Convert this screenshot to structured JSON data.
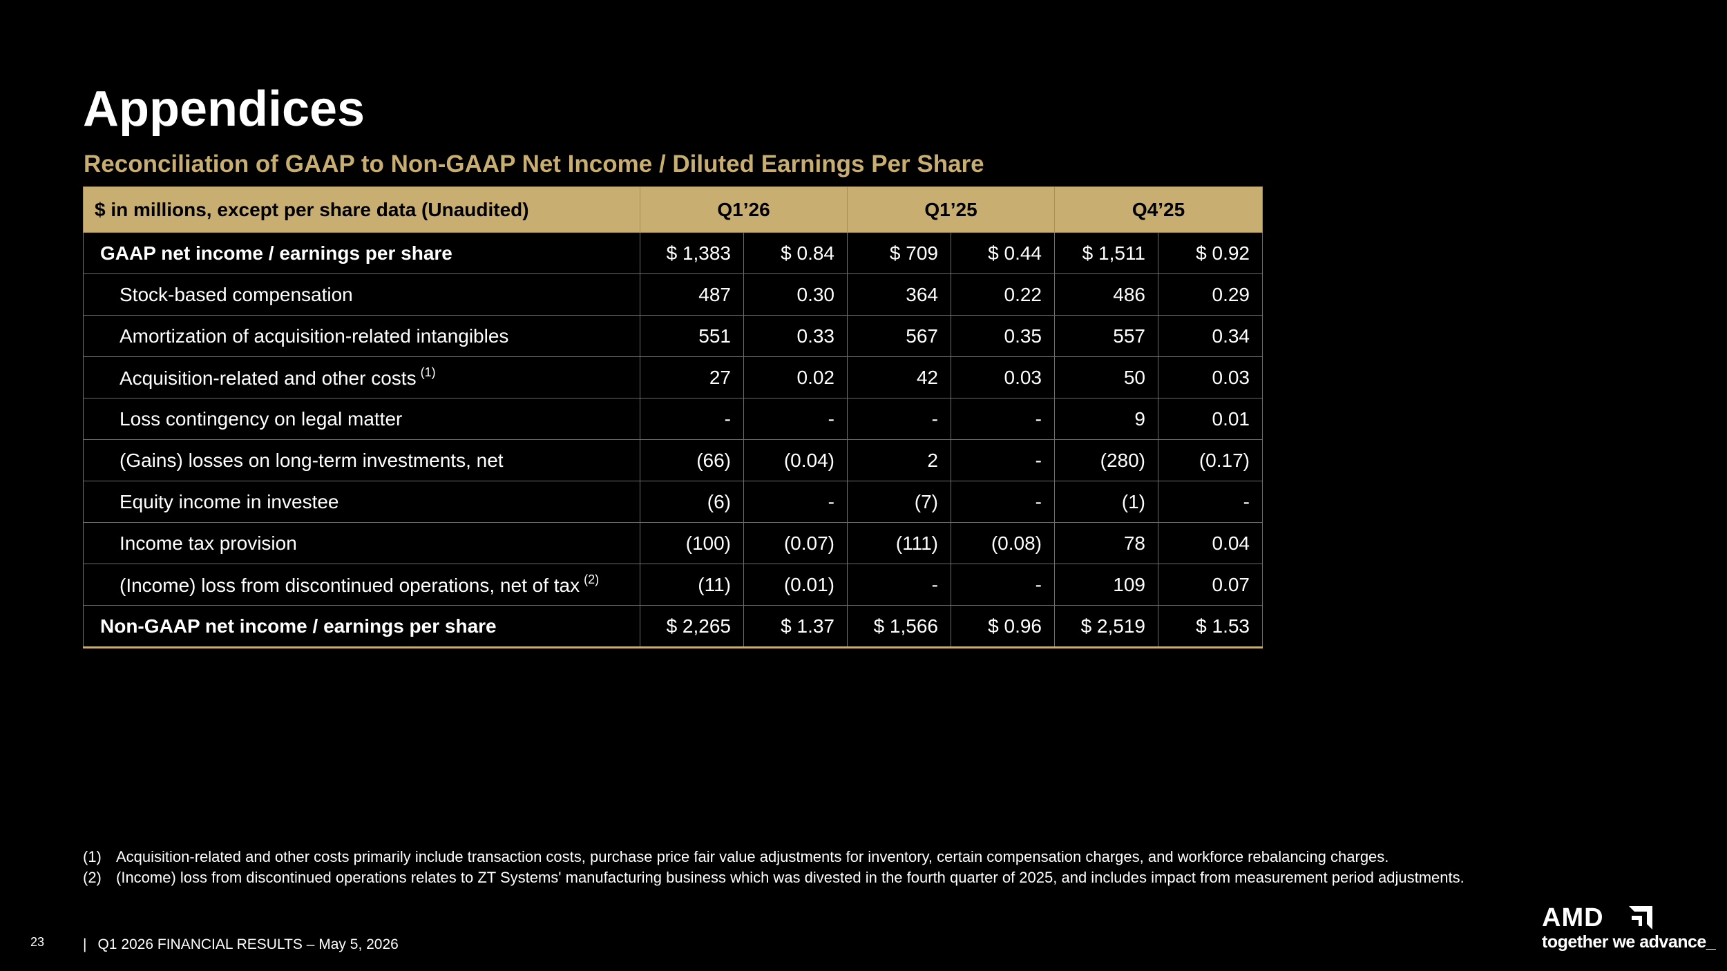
{
  "slide": {
    "title": "Appendices",
    "subtitle": "Reconciliation of GAAP to Non-GAAP Net Income / Diluted Earnings Per Share",
    "page_number": "23",
    "footer_separator": "|",
    "footer_text": "Q1 2026 FINANCIAL RESULTS – May 5, 2026"
  },
  "table": {
    "header_label": "$ in millions, except per share data (Unaudited)",
    "periods": [
      "Q1’26",
      "Q1’25",
      "Q4’25"
    ],
    "rows": [
      {
        "label": "GAAP net income / earnings per share",
        "footnote": "",
        "bold": true,
        "values": [
          "$ 1,383",
          "$ 0.84",
          "$ 709",
          "$ 0.44",
          "$ 1,511",
          "$ 0.92"
        ]
      },
      {
        "label": "Stock-based compensation",
        "footnote": "",
        "bold": false,
        "values": [
          "487",
          "0.30",
          "364",
          "0.22",
          "486",
          "0.29"
        ]
      },
      {
        "label": "Amortization of acquisition-related intangibles",
        "footnote": "",
        "bold": false,
        "values": [
          "551",
          "0.33",
          "567",
          "0.35",
          "557",
          "0.34"
        ]
      },
      {
        "label": "Acquisition-related and other costs",
        "footnote": "(1)",
        "bold": false,
        "values": [
          "27",
          "0.02",
          "42",
          "0.03",
          "50",
          "0.03"
        ]
      },
      {
        "label": "Loss contingency on legal matter",
        "footnote": "",
        "bold": false,
        "values": [
          "-",
          "-",
          "-",
          "-",
          "9",
          "0.01"
        ]
      },
      {
        "label": "(Gains) losses on long-term investments, net",
        "footnote": "",
        "bold": false,
        "values": [
          "(66)",
          "(0.04)",
          "2",
          "-",
          "(280)",
          "(0.17)"
        ]
      },
      {
        "label": "Equity income in investee",
        "footnote": "",
        "bold": false,
        "values": [
          "(6)",
          "-",
          "(7)",
          "-",
          "(1)",
          "-"
        ]
      },
      {
        "label": "Income tax provision",
        "footnote": "",
        "bold": false,
        "values": [
          "(100)",
          "(0.07)",
          "(111)",
          "(0.08)",
          "78",
          "0.04"
        ]
      },
      {
        "label": "(Income) loss from discontinued operations, net of tax",
        "footnote": "(2)",
        "bold": false,
        "values": [
          "(11)",
          "(0.01)",
          "-",
          "-",
          "109",
          "0.07"
        ]
      },
      {
        "label": "Non-GAAP net income / earnings per share",
        "footnote": "",
        "bold": true,
        "values": [
          "$ 2,265",
          "$ 1.37",
          "$ 1,566",
          "$ 0.96",
          "$ 2,519",
          "$ 1.53"
        ]
      }
    ]
  },
  "footnotes": [
    {
      "num": "(1)",
      "text": "Acquisition-related and other costs primarily include transaction costs, purchase price fair value adjustments for inventory, certain compensation charges, and workforce rebalancing charges."
    },
    {
      "num": "(2)",
      "text": "(Income) loss from discontinued operations relates to ZT Systems' manufacturing business which was divested in the fourth quarter of 2025, and includes impact from measurement period adjustments."
    }
  ],
  "logo": {
    "wordmark": "AMD",
    "tagline": "together we advance_",
    "icon": "amd-arrow-icon"
  },
  "colors": {
    "background": "#000000",
    "accent_gold": "#c9ae72",
    "text": "#ffffff"
  }
}
